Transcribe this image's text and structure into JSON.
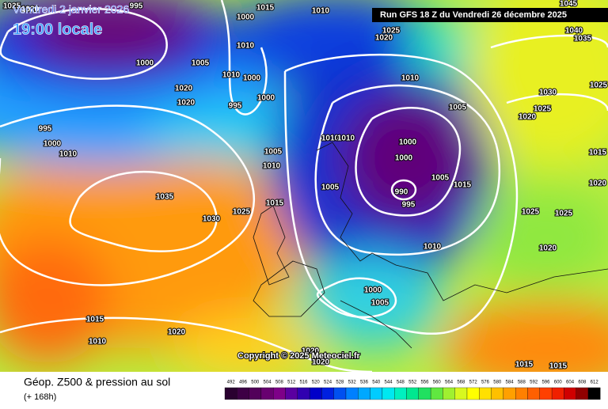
{
  "header": {
    "date": "Vendredi 2 janvier 2026",
    "time": "19:00 locale",
    "run": "Run GFS 18 Z du Vendredi 26 décembre 2025"
  },
  "map": {
    "isobar_labels": [
      1025,
      1020,
      995,
      1015,
      1010,
      1000,
      1010,
      1000,
      1005,
      1020,
      1020,
      1010,
      1000,
      995,
      1000,
      995,
      1000,
      1010,
      1005,
      1010,
      1035,
      1030,
      1025,
      1015,
      1025,
      1020,
      1010,
      1005,
      1010,
      1010,
      1000,
      1000,
      1005,
      1005,
      990,
      995,
      1015,
      1025,
      1025,
      1010,
      1020,
      1000,
      1005,
      1015,
      1020,
      1010,
      1020,
      1020,
      1015,
      1015,
      1040,
      1035,
      1030,
      1025,
      1020,
      1025,
      1015,
      1020,
      1045
    ],
    "copyright": "Copyright © 2025 Meteociel.fr"
  },
  "footer": {
    "title": "Géop. Z500 & pression au sol",
    "lead": "(+ 168h)",
    "scale": [
      492,
      496,
      500,
      504,
      508,
      512,
      516,
      520,
      524,
      528,
      532,
      536,
      540,
      544,
      548,
      552,
      556,
      560,
      564,
      568,
      572,
      576,
      580,
      584,
      588,
      592,
      596,
      600,
      604,
      608,
      612
    ]
  }
}
